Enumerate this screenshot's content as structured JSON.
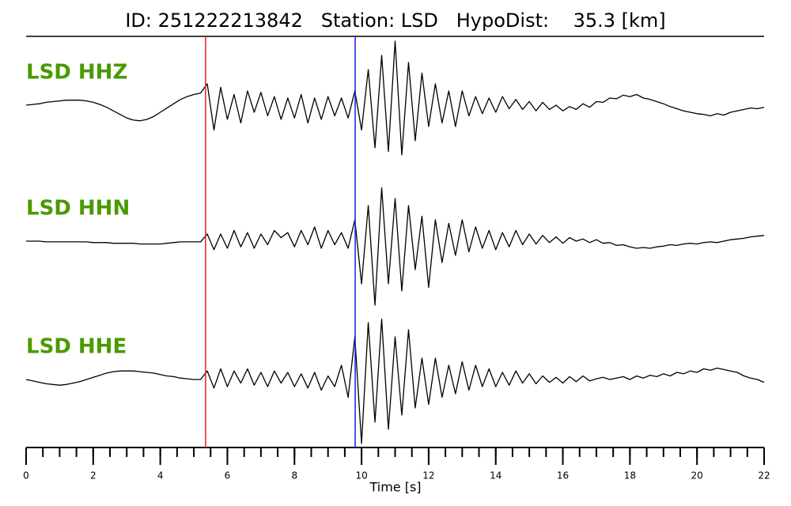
{
  "chart_data": {
    "type": "line",
    "title": "ID: 251222213842   Station: LSD   HypoDist:    35.3 [km]",
    "xlabel": "Time [s]",
    "xlim": [
      0,
      22
    ],
    "xticks": [
      0,
      2,
      4,
      6,
      8,
      10,
      12,
      14,
      16,
      18,
      20,
      22
    ],
    "xticks_minor": [
      0,
      0.5,
      1,
      1.5,
      2,
      2.5,
      3,
      3.5,
      4,
      4.5,
      5,
      5.5,
      6,
      6.5,
      7,
      7.5,
      8,
      8.5,
      9,
      9.5,
      10,
      10.5,
      11,
      11.5,
      12,
      12.5,
      13,
      13.5,
      14,
      14.5,
      15,
      15.5,
      16,
      16.5,
      17,
      17.5,
      18,
      18.5,
      19,
      19.5,
      20,
      20.5,
      21,
      21.5,
      22
    ],
    "ylim": [
      -1,
      1
    ],
    "picks": [
      {
        "value": 5.35,
        "color": "#e8211a"
      },
      {
        "value": 9.81,
        "color": "#1a1ae8"
      }
    ],
    "label_color": "#4a9a00",
    "x": [
      0,
      0.2,
      0.4,
      0.6,
      0.8,
      1,
      1.2,
      1.4,
      1.6,
      1.8,
      2,
      2.2,
      2.4,
      2.6,
      2.8,
      3,
      3.2,
      3.4,
      3.6,
      3.8,
      4,
      4.2,
      4.4,
      4.6,
      4.8,
      5,
      5.2,
      5.4,
      5.6,
      5.8,
      6,
      6.2,
      6.4,
      6.6,
      6.8,
      7,
      7.2,
      7.4,
      7.6,
      7.8,
      8,
      8.2,
      8.4,
      8.6,
      8.8,
      9,
      9.2,
      9.4,
      9.6,
      9.8,
      10,
      10.2,
      10.4,
      10.6,
      10.8,
      11,
      11.2,
      11.4,
      11.6,
      11.8,
      12,
      12.2,
      12.4,
      12.6,
      12.8,
      13,
      13.2,
      13.4,
      13.6,
      13.8,
      14,
      14.2,
      14.4,
      14.6,
      14.8,
      15,
      15.2,
      15.4,
      15.6,
      15.8,
      16,
      16.2,
      16.4,
      16.6,
      16.8,
      17,
      17.2,
      17.4,
      17.6,
      17.8,
      18,
      18.2,
      18.4,
      18.6,
      18.8,
      19,
      19.2,
      19.4,
      19.6,
      19.8,
      20,
      20.2,
      20.4,
      20.6,
      20.8,
      21,
      21.2,
      21.4,
      21.6,
      21.8,
      22
    ],
    "series": [
      {
        "name": "LSD HHZ",
        "color": "#000000",
        "values": [
          0,
          0.01,
          0.02,
          0.04,
          0.05,
          0.06,
          0.07,
          0.07,
          0.07,
          0.06,
          0.04,
          0.01,
          -0.03,
          -0.08,
          -0.13,
          -0.18,
          -0.21,
          -0.22,
          -0.2,
          -0.16,
          -0.1,
          -0.04,
          0.02,
          0.08,
          0.12,
          0.15,
          0.17,
          0.3,
          -0.35,
          0.25,
          -0.2,
          0.15,
          -0.25,
          0.2,
          -0.1,
          0.18,
          -0.15,
          0.12,
          -0.2,
          0.1,
          -0.18,
          0.15,
          -0.25,
          0.1,
          -0.2,
          0.12,
          -0.15,
          0.1,
          -0.18,
          0.2,
          -0.35,
          0.5,
          -0.6,
          0.7,
          -0.65,
          0.9,
          -0.7,
          0.6,
          -0.5,
          0.45,
          -0.3,
          0.3,
          -0.25,
          0.2,
          -0.3,
          0.2,
          -0.15,
          0.12,
          -0.12,
          0.1,
          -0.1,
          0.12,
          -0.05,
          0.08,
          -0.06,
          0.05,
          -0.08,
          0.04,
          -0.06,
          0,
          -0.08,
          -0.02,
          -0.06,
          0.02,
          -0.03,
          0.05,
          0.04,
          0.1,
          0.09,
          0.14,
          0.12,
          0.15,
          0.1,
          0.08,
          0.05,
          0.02,
          -0.02,
          -0.05,
          -0.08,
          -0.1,
          -0.12,
          -0.13,
          -0.15,
          -0.12,
          -0.14,
          -0.1,
          -0.08,
          -0.06,
          -0.04,
          -0.05,
          -0.03
        ]
      },
      {
        "name": "LSD HHN",
        "color": "#000000",
        "values": [
          0,
          0,
          0,
          -0.01,
          -0.01,
          -0.01,
          -0.01,
          -0.01,
          -0.01,
          -0.01,
          -0.02,
          -0.02,
          -0.02,
          -0.03,
          -0.03,
          -0.03,
          -0.03,
          -0.04,
          -0.04,
          -0.04,
          -0.04,
          -0.03,
          -0.02,
          -0.01,
          -0.01,
          -0.01,
          -0.01,
          0.1,
          -0.12,
          0.1,
          -0.1,
          0.15,
          -0.08,
          0.12,
          -0.1,
          0.1,
          -0.05,
          0.15,
          0.05,
          0.12,
          -0.08,
          0.15,
          -0.05,
          0.2,
          -0.1,
          0.15,
          -0.05,
          0.12,
          -0.1,
          0.3,
          -0.6,
          0.5,
          -0.9,
          0.75,
          -0.6,
          0.6,
          -0.7,
          0.5,
          -0.4,
          0.35,
          -0.65,
          0.3,
          -0.3,
          0.25,
          -0.2,
          0.3,
          -0.15,
          0.2,
          -0.1,
          0.15,
          -0.12,
          0.12,
          -0.08,
          0.15,
          -0.05,
          0.1,
          -0.04,
          0.08,
          -0.02,
          0.06,
          -0.03,
          0.05,
          0,
          0.03,
          -0.02,
          0.02,
          -0.03,
          -0.02,
          -0.06,
          -0.05,
          -0.08,
          -0.1,
          -0.09,
          -0.1,
          -0.08,
          -0.07,
          -0.05,
          -0.06,
          -0.04,
          -0.03,
          -0.04,
          -0.02,
          -0.01,
          -0.02,
          0,
          0.02,
          0.03,
          0.04,
          0.06,
          0.07,
          0.08
        ]
      },
      {
        "name": "LSD HHE",
        "color": "#000000",
        "values": [
          0,
          -0.02,
          -0.04,
          -0.06,
          -0.07,
          -0.08,
          -0.07,
          -0.05,
          -0.03,
          0,
          0.03,
          0.06,
          0.09,
          0.11,
          0.12,
          0.12,
          0.12,
          0.11,
          0.1,
          0.09,
          0.07,
          0.05,
          0.04,
          0.02,
          0.01,
          0,
          0,
          0.12,
          -0.12,
          0.15,
          -0.1,
          0.12,
          -0.05,
          0.15,
          -0.08,
          0.1,
          -0.1,
          0.12,
          -0.05,
          0.1,
          -0.1,
          0.08,
          -0.12,
          0.1,
          -0.15,
          0.05,
          -0.1,
          0.2,
          -0.25,
          0.6,
          -0.9,
          0.8,
          -0.6,
          0.85,
          -0.7,
          0.6,
          -0.5,
          0.7,
          -0.4,
          0.3,
          -0.35,
          0.3,
          -0.25,
          0.2,
          -0.2,
          0.25,
          -0.15,
          0.2,
          -0.1,
          0.15,
          -0.1,
          0.1,
          -0.08,
          0.12,
          -0.05,
          0.08,
          -0.06,
          0.05,
          -0.04,
          0.03,
          -0.05,
          0.04,
          -0.03,
          0.05,
          -0.02,
          0.01,
          0.03,
          0,
          0.02,
          0.04,
          0,
          0.05,
          0.02,
          0.06,
          0.04,
          0.08,
          0.05,
          0.1,
          0.08,
          0.12,
          0.1,
          0.15,
          0.13,
          0.16,
          0.14,
          0.12,
          0.1,
          0.05,
          0.02,
          0,
          -0.04
        ]
      }
    ]
  }
}
